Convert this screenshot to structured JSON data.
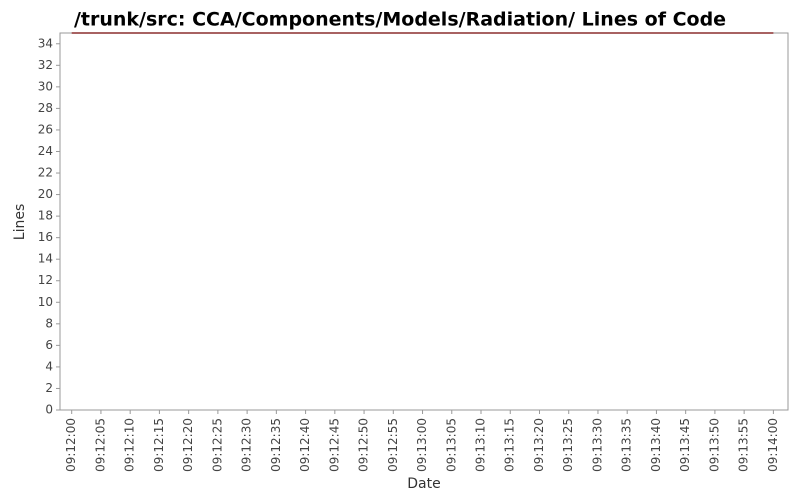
{
  "chart_data": {
    "type": "line",
    "title": "/trunk/src: CCA/Components/Models/Radiation/ Lines of Code",
    "x_label": "Date",
    "y_label": "Lines",
    "x": [
      "09:12:00",
      "09:14:00"
    ],
    "series": [
      {
        "name": "Lines",
        "color": "#8b2f2f",
        "values": [
          35,
          35
        ]
      }
    ],
    "xlim": [
      "09:11:58",
      "09:14:02.5"
    ],
    "xticks": [
      "09:12:00",
      "09:12:05",
      "09:12:10",
      "09:12:15",
      "09:12:20",
      "09:12:25",
      "09:12:30",
      "09:12:35",
      "09:12:40",
      "09:12:45",
      "09:12:50",
      "09:12:55",
      "09:13:00",
      "09:13:05",
      "09:13:10",
      "09:13:15",
      "09:13:20",
      "09:13:25",
      "09:13:30",
      "09:13:35",
      "09:13:40",
      "09:13:45",
      "09:13:50",
      "09:13:55",
      "09:14:00"
    ],
    "ylim": [
      0,
      35
    ],
    "yticks": [
      0,
      2,
      4,
      6,
      8,
      10,
      12,
      14,
      16,
      18,
      20,
      22,
      24,
      26,
      28,
      30,
      32,
      34
    ],
    "grid": false
  }
}
